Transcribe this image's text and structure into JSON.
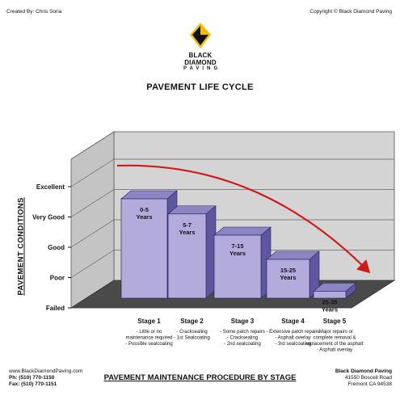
{
  "header": {
    "created_by": "Created By: Chris Soria",
    "copyright": "Copyright © Black Diamond Paving"
  },
  "logo": {
    "name": "BLACK DIAMOND",
    "sub": "PAVING"
  },
  "chart_data": {
    "type": "bar",
    "title": "PAVEMENT LIFE CYCLE",
    "ylabel": "PAVEMENT CONDITIONS",
    "xlabel": "PAVEMENT MAINTENANCE PROCEDURE BY STAGE",
    "y_ticks": [
      "Failed",
      "Poor",
      "Good",
      "Very Good",
      "Excellent"
    ],
    "ylim": [
      0,
      4
    ],
    "categories": [
      "Stage 1",
      "Stage 2",
      "Stage 3",
      "Stage 4",
      "Stage 5"
    ],
    "values": [
      3.6,
      3.1,
      2.4,
      1.6,
      0.55
    ],
    "bar_labels": [
      [
        "0-5",
        "Years"
      ],
      [
        "5-7",
        "Years"
      ],
      [
        "7-15",
        "Years"
      ],
      [
        "15-25",
        "Years"
      ],
      [
        "25-35",
        "Years"
      ]
    ],
    "stage_notes": [
      [
        "- Little or no",
        "maintenance required",
        "- Possible sealcoating"
      ],
      [
        "- Cracksealing",
        "- 1st Sealcoating"
      ],
      [
        "- Some patch repairs",
        "- Cracksealing",
        "- 2nd sealcoating"
      ],
      [
        "- Extensive patch repairs",
        "- Asphalt overlay",
        "- 3rd sealcoating"
      ],
      [
        "- Major repairs or",
        "complete removal &",
        "replacement of the asphalt",
        "- Asphalt overlay"
      ]
    ],
    "trend": "red curved arrow declining from top-left to bottom-right",
    "colors": {
      "bar_front": "#b3abdc",
      "bar_side": "#5f56a0",
      "bar_top": "#8c85c4",
      "trend": "#d01a1a",
      "wall": "#d4d4d4",
      "floor": "#4a4a4a"
    }
  },
  "footer": {
    "website": "www.BlackDiamondPaving.com",
    "phone": "Ph: (510) 770-1150",
    "fax": "Fax: (510) 770-1151",
    "company": "Black Diamond Paving",
    "address1": "41550 Boscell Road",
    "address2": "Fremont CA 94538"
  }
}
